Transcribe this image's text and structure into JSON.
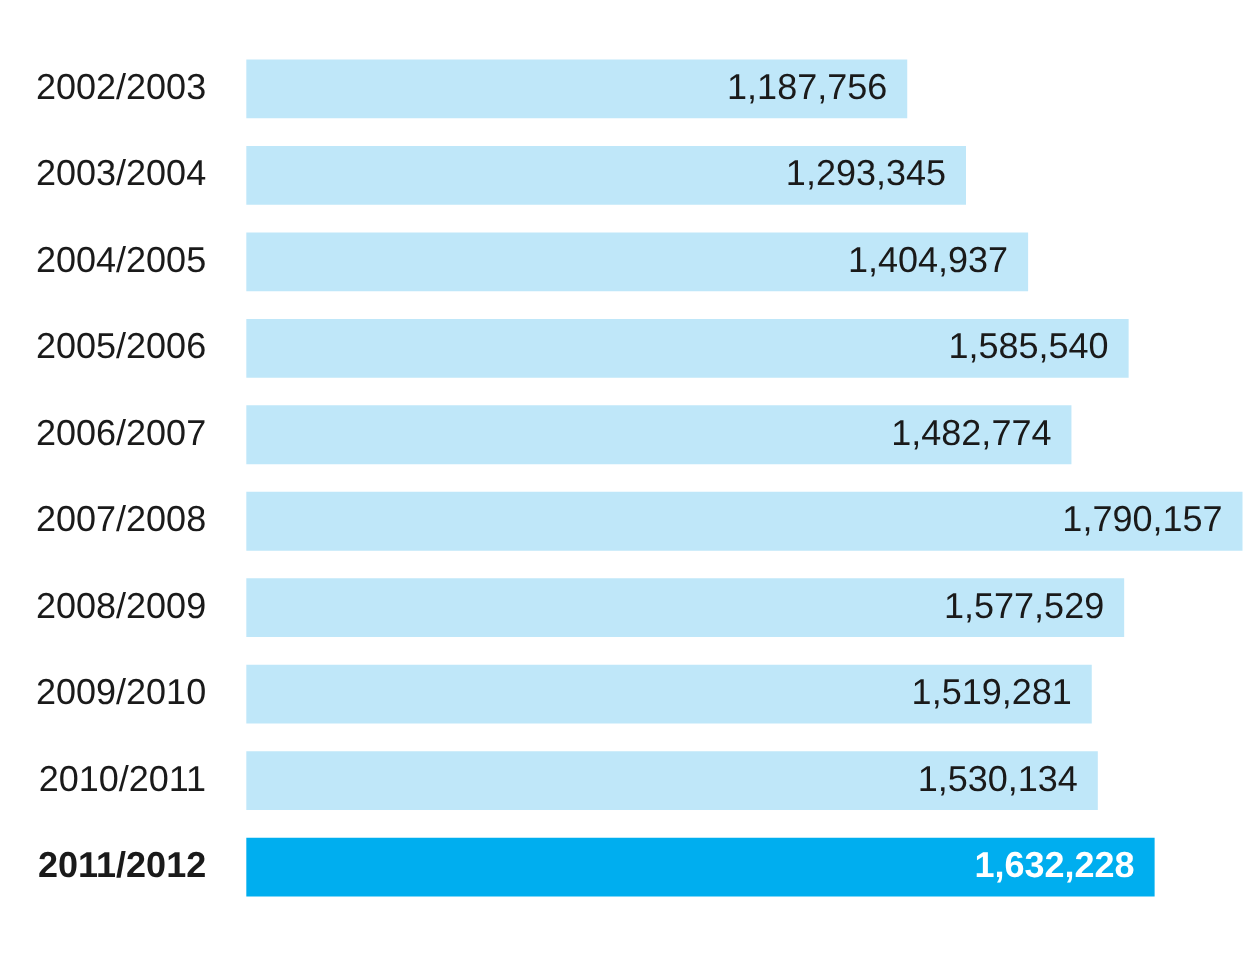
{
  "chart_data": {
    "type": "bar",
    "orientation": "horizontal",
    "categories": [
      "2002/2003",
      "2003/2004",
      "2004/2005",
      "2005/2006",
      "2006/2007",
      "2007/2008",
      "2008/2009",
      "2009/2010",
      "2010/2011",
      "2011/2012"
    ],
    "values": [
      1187756,
      1293345,
      1404937,
      1585540,
      1482774,
      1790157,
      1577529,
      1519281,
      1530134,
      1632228
    ],
    "colors": [
      "#bfe7f9",
      "#bfe7f9",
      "#bfe7f9",
      "#bfe7f9",
      "#bfe7f9",
      "#bfe7f9",
      "#bfe7f9",
      "#bfe7f9",
      "#bfe7f9",
      "#00aeef"
    ],
    "value_labels": [
      "1,187,756",
      "1,293,345",
      "1,404,937",
      "1,585,540",
      "1,482,774",
      "1,790,157",
      "1,577,529",
      "1,519,281",
      "1,530,134",
      "1,632,228"
    ],
    "tick_labels": "y"
  }
}
